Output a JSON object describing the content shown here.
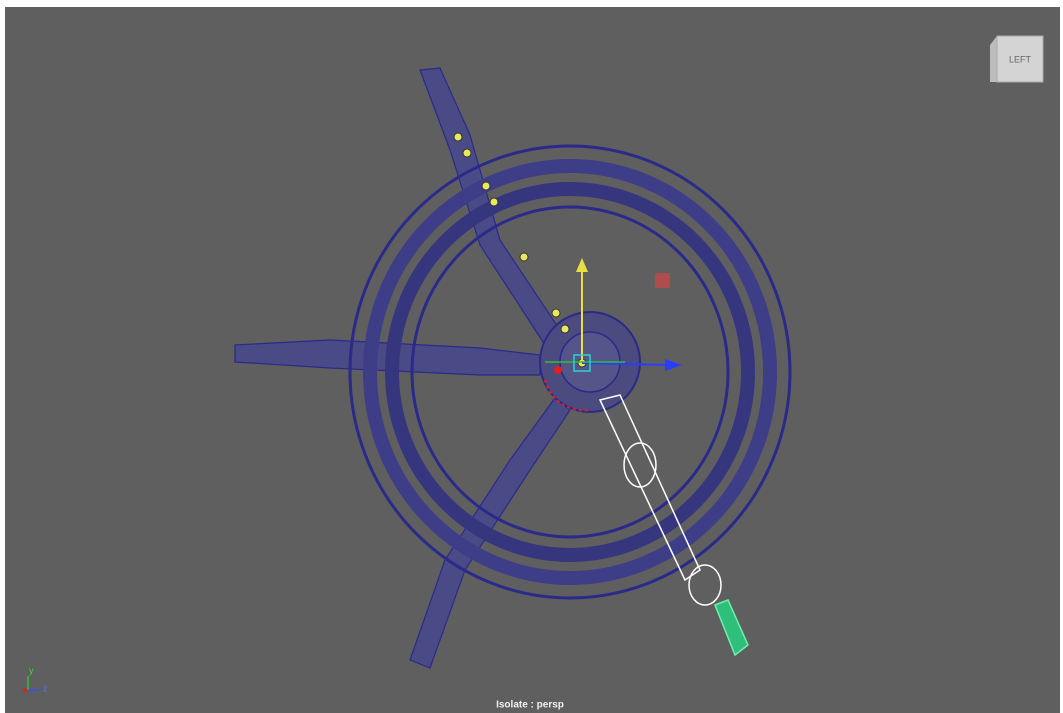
{
  "viewcube": {
    "label": "LEFT"
  },
  "axes": {
    "y": "y",
    "z": "z"
  },
  "camera": {
    "label": "Isolate : persp"
  }
}
